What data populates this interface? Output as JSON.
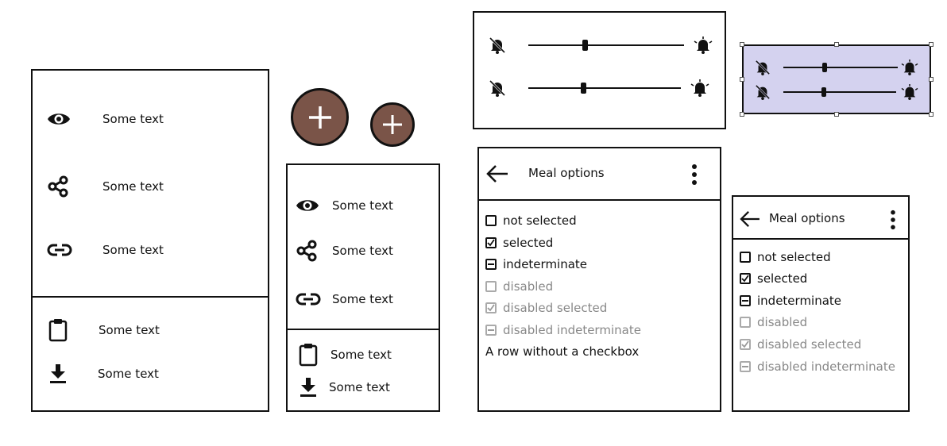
{
  "large_list": {
    "items": [
      {
        "icon": "eye-icon",
        "label": "Some text"
      },
      {
        "icon": "share-icon",
        "label": "Some text"
      },
      {
        "icon": "link-icon",
        "label": "Some text"
      }
    ],
    "footer_items": [
      {
        "icon": "clipboard-icon",
        "label": "Some text"
      },
      {
        "icon": "download-icon",
        "label": "Some text"
      }
    ]
  },
  "small_list": {
    "items": [
      {
        "icon": "eye-icon",
        "label": "Some text"
      },
      {
        "icon": "share-icon",
        "label": "Some text"
      },
      {
        "icon": "link-icon",
        "label": "Some text"
      }
    ],
    "footer_items": [
      {
        "icon": "clipboard-icon",
        "label": "Some text"
      },
      {
        "icon": "download-icon",
        "label": "Some text"
      }
    ]
  },
  "fabs": [
    {
      "icon": "plus-icon",
      "color": "#7a5448"
    },
    {
      "icon": "plus-icon",
      "color": "#7a5448"
    }
  ],
  "sliders": {
    "left_icon": "bell-off-icon",
    "right_icon": "bell-ring-icon",
    "values": [
      0.36,
      0.36
    ],
    "selected_values": [
      0.36,
      0.36
    ],
    "selected_color": "#d4d2ef"
  },
  "meal_large": {
    "title": "Meal options",
    "options": [
      {
        "label": "not selected",
        "state": "unchecked",
        "disabled": false
      },
      {
        "label": "selected",
        "state": "checked",
        "disabled": false
      },
      {
        "label": "indeterminate",
        "state": "indeterminate",
        "disabled": false
      },
      {
        "label": "disabled",
        "state": "unchecked",
        "disabled": true
      },
      {
        "label": "disabled selected",
        "state": "checked",
        "disabled": true
      },
      {
        "label": "disabled indeterminate",
        "state": "indeterminate",
        "disabled": true
      }
    ],
    "plain_row": "A row without a checkbox"
  },
  "meal_small": {
    "title": "Meal options",
    "options": [
      {
        "label": "not selected",
        "state": "unchecked",
        "disabled": false
      },
      {
        "label": "selected",
        "state": "checked",
        "disabled": false
      },
      {
        "label": "indeterminate",
        "state": "indeterminate",
        "disabled": false
      },
      {
        "label": "disabled",
        "state": "unchecked",
        "disabled": true
      },
      {
        "label": "disabled selected",
        "state": "checked",
        "disabled": true
      },
      {
        "label": "disabled indeterminate",
        "state": "indeterminate",
        "disabled": true
      }
    ]
  }
}
